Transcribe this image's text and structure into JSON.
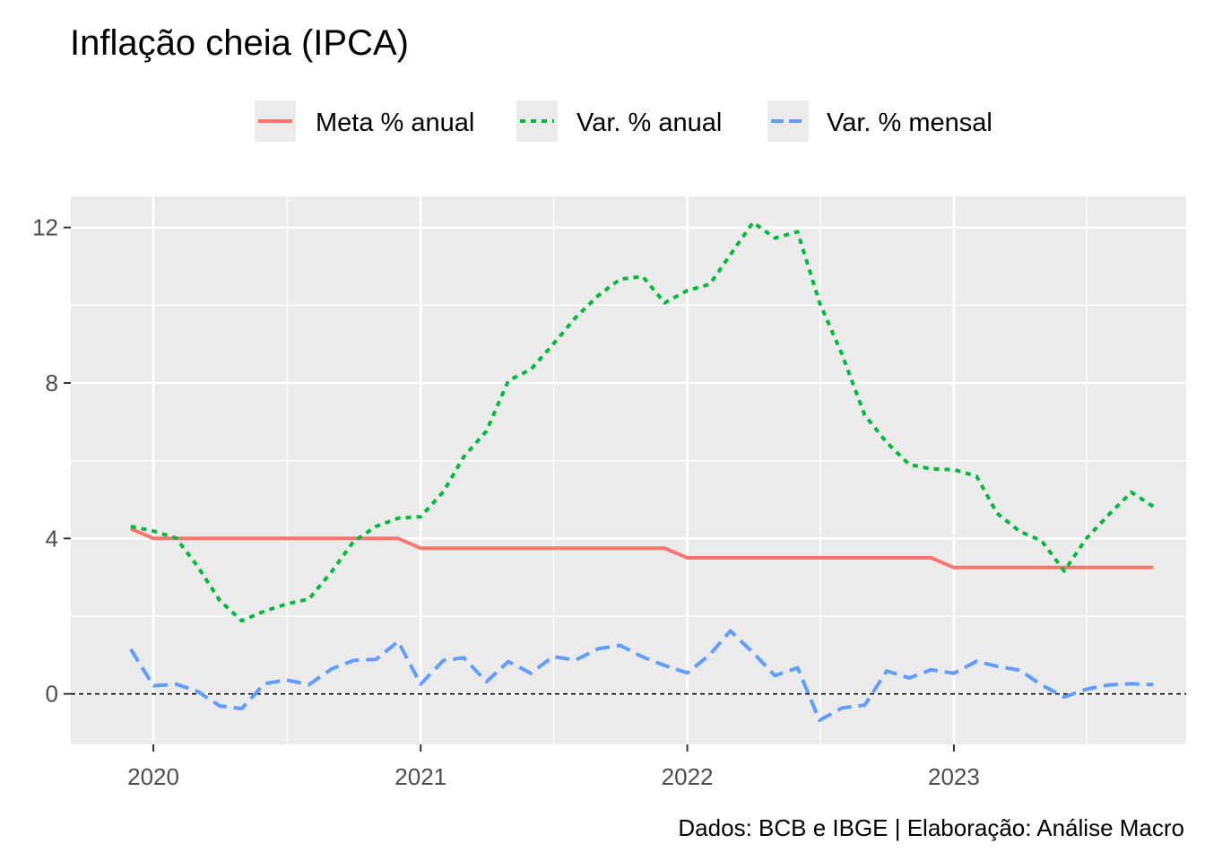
{
  "chart_data": {
    "type": "line",
    "title": "Inflação cheia (IPCA)",
    "caption": "Dados: BCB e IBGE | Elaboração: Análise Macro",
    "xlabel": "",
    "ylabel": "",
    "x_ticks": [
      "2020",
      "2021",
      "2022",
      "2023"
    ],
    "y_ticks": [
      "0",
      "4",
      "8",
      "12"
    ],
    "xlim": [
      "2019-09-10",
      "2023-11-15"
    ],
    "ylim": [
      -1.3,
      12.8
    ],
    "grid": true,
    "legend_position": "top",
    "reference_line": {
      "y": 0,
      "style": "dashed",
      "color": "#000000"
    },
    "dates": [
      "2019-12",
      "2020-01",
      "2020-02",
      "2020-03",
      "2020-04",
      "2020-05",
      "2020-06",
      "2020-07",
      "2020-08",
      "2020-09",
      "2020-10",
      "2020-11",
      "2020-12",
      "2021-01",
      "2021-02",
      "2021-03",
      "2021-04",
      "2021-05",
      "2021-06",
      "2021-07",
      "2021-08",
      "2021-09",
      "2021-10",
      "2021-11",
      "2021-12",
      "2022-01",
      "2022-02",
      "2022-03",
      "2022-04",
      "2022-05",
      "2022-06",
      "2022-07",
      "2022-08",
      "2022-09",
      "2022-10",
      "2022-11",
      "2022-12",
      "2023-01",
      "2023-02",
      "2023-03",
      "2023-04",
      "2023-05",
      "2023-06",
      "2023-07",
      "2023-08",
      "2023-09",
      "2023-10"
    ],
    "series": [
      {
        "name": "Meta % anual",
        "color": "#F8766D",
        "dash": "solid",
        "values": [
          4.25,
          4,
          4,
          4,
          4,
          4,
          4,
          4,
          4,
          4,
          4,
          4,
          4,
          3.75,
          3.75,
          3.75,
          3.75,
          3.75,
          3.75,
          3.75,
          3.75,
          3.75,
          3.75,
          3.75,
          3.75,
          3.5,
          3.5,
          3.5,
          3.5,
          3.5,
          3.5,
          3.5,
          3.5,
          3.5,
          3.5,
          3.5,
          3.5,
          3.25,
          3.25,
          3.25,
          3.25,
          3.25,
          3.25,
          3.25,
          3.25,
          3.25,
          3.25
        ]
      },
      {
        "name": "Var. % anual",
        "color": "#00BA38",
        "dash": "dotted",
        "values": [
          4.31,
          4.19,
          4.01,
          3.3,
          2.4,
          1.88,
          2.13,
          2.31,
          2.44,
          3.14,
          3.92,
          4.31,
          4.52,
          4.56,
          5.2,
          6.1,
          6.76,
          8.06,
          8.35,
          8.99,
          9.68,
          10.25,
          10.67,
          10.74,
          10.06,
          10.38,
          10.54,
          11.3,
          12.13,
          11.73,
          11.89,
          10.07,
          8.73,
          7.17,
          6.47,
          5.9,
          5.79,
          5.77,
          5.6,
          4.65,
          4.18,
          3.94,
          3.16,
          3.99,
          4.61,
          5.19,
          4.82
        ]
      },
      {
        "name": "Var. % mensal",
        "color": "#619CFF",
        "dash": "dashed",
        "values": [
          1.15,
          0.21,
          0.25,
          0.07,
          -0.31,
          -0.38,
          0.26,
          0.36,
          0.24,
          0.64,
          0.86,
          0.89,
          1.35,
          0.25,
          0.86,
          0.93,
          0.31,
          0.83,
          0.53,
          0.96,
          0.87,
          1.16,
          1.25,
          0.95,
          0.73,
          0.54,
          1.01,
          1.62,
          1.06,
          0.47,
          0.67,
          -0.68,
          -0.36,
          -0.29,
          0.59,
          0.41,
          0.62,
          0.53,
          0.84,
          0.71,
          0.61,
          0.23,
          -0.08,
          0.12,
          0.23,
          0.26,
          0.24
        ]
      }
    ]
  }
}
